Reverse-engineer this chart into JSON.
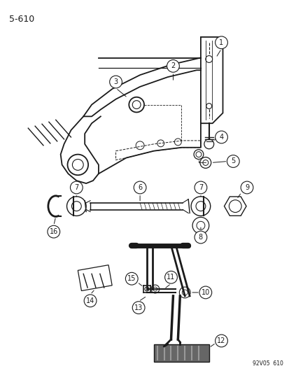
{
  "title": "5-610",
  "background_color": "#ffffff",
  "line_color": "#1a1a1a",
  "figsize": [
    4.14,
    5.33
  ],
  "dpi": 100,
  "watermark": "92V05  610"
}
